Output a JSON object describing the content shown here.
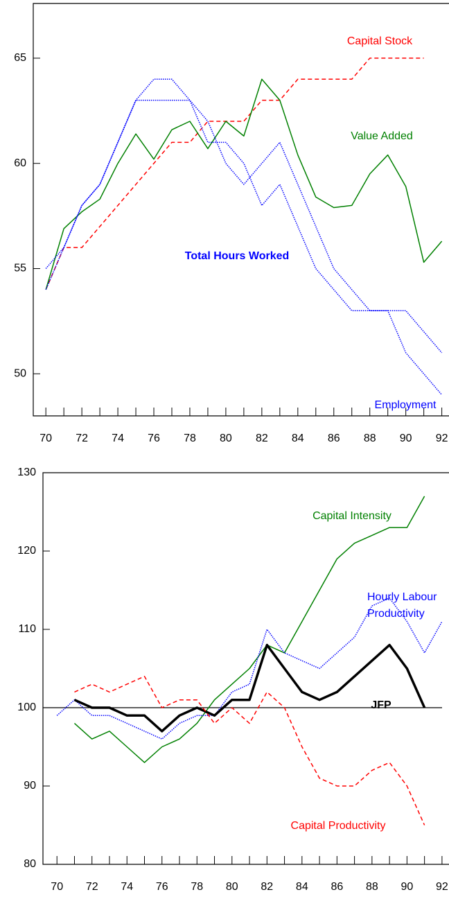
{
  "chart_data": [
    {
      "type": "line",
      "x": [
        70,
        71,
        72,
        73,
        74,
        75,
        76,
        77,
        78,
        79,
        80,
        81,
        82,
        83,
        84,
        85,
        86,
        87,
        88,
        89,
        90,
        91,
        92
      ],
      "xlim": [
        69.3,
        92.4
      ],
      "xticks": [
        70,
        72,
        74,
        76,
        78,
        80,
        82,
        84,
        86,
        88,
        90,
        92
      ],
      "ylim": [
        48,
        67.6
      ],
      "yticks": [
        50,
        55,
        60,
        65
      ],
      "series": [
        {
          "name": "Capital Stock",
          "color": "#ff0000",
          "line_style": "dashed",
          "line_width": 1.5,
          "values": [
            54,
            56,
            56,
            57,
            58,
            59,
            60,
            61,
            61,
            62,
            62,
            62,
            63,
            63,
            64,
            64,
            64,
            64,
            65,
            65,
            65,
            65,
            null
          ]
        },
        {
          "name": "Value Added",
          "color": "#008000",
          "line_style": "solid",
          "line_width": 1.5,
          "values": [
            54,
            56.9,
            57.7,
            58.3,
            60,
            61.4,
            60.2,
            61.6,
            62,
            60.7,
            62,
            61.3,
            64,
            63,
            60.4,
            58.4,
            57.9,
            58,
            59.5,
            60.4,
            58.9,
            55.3,
            56.3
          ]
        },
        {
          "name": "Total Hours Worked",
          "color": "#0000ff",
          "line_style": "dotted",
          "line_width": 1.5,
          "label_bold": true,
          "values": [
            55,
            56,
            58,
            59,
            61,
            63,
            63,
            63,
            63,
            61,
            61,
            60,
            58,
            59,
            57,
            55,
            54,
            53,
            53,
            53,
            53,
            52,
            51
          ]
        },
        {
          "name": "Employment",
          "color": "#0000ff",
          "line_style": "dotted",
          "line_width": 1.5,
          "values": [
            54,
            56,
            58,
            59,
            61,
            63,
            64,
            64,
            63,
            62,
            60,
            59,
            60,
            61,
            59,
            57,
            55,
            54,
            53,
            53,
            51,
            50,
            49
          ]
        }
      ]
    },
    {
      "type": "line",
      "x": [
        70,
        71,
        72,
        73,
        74,
        75,
        76,
        77,
        78,
        79,
        80,
        81,
        82,
        83,
        84,
        85,
        86,
        87,
        88,
        89,
        90,
        91,
        92
      ],
      "xlim": [
        69.2,
        92.4
      ],
      "xticks": [
        70,
        72,
        74,
        76,
        78,
        80,
        82,
        84,
        86,
        88,
        90,
        92
      ],
      "ylim": [
        80,
        130
      ],
      "yticks": [
        80,
        90,
        100,
        110,
        120,
        130
      ],
      "hlines": [
        100
      ],
      "series": [
        {
          "name": "Capital Intensity",
          "color": "#008000",
          "line_style": "solid",
          "line_width": 1.5,
          "values": [
            null,
            98,
            96,
            97,
            95,
            93,
            95,
            96,
            98,
            101,
            103,
            105,
            108,
            107,
            111,
            115,
            119,
            121,
            122,
            123,
            123,
            127,
            null
          ]
        },
        {
          "name": "Hourly Labour Productivity",
          "color": "#0000ff",
          "line_style": "dotted",
          "line_width": 1.5,
          "values": [
            99,
            101,
            99,
            99,
            98,
            97,
            96,
            98,
            99,
            99,
            102,
            103,
            110,
            107,
            106,
            105,
            107,
            109,
            113,
            114,
            111,
            107,
            111
          ]
        },
        {
          "name": "JFP",
          "color": "#000000",
          "line_style": "solid",
          "line_width": 3.5,
          "label_bold": true,
          "values": [
            null,
            101,
            100,
            100,
            99,
            99,
            97,
            99,
            100,
            99,
            101,
            101,
            108,
            105,
            102,
            101,
            102,
            104,
            106,
            108,
            105,
            100,
            null
          ]
        },
        {
          "name": "Capital Productivity",
          "color": "#ff0000",
          "line_style": "dashed",
          "line_width": 1.5,
          "values": [
            null,
            102,
            103,
            102,
            103,
            104,
            100,
            101,
            101,
            98,
            100,
            98,
            102,
            100,
            95,
            91,
            90,
            90,
            92,
            93,
            90,
            85,
            null
          ]
        }
      ]
    }
  ]
}
